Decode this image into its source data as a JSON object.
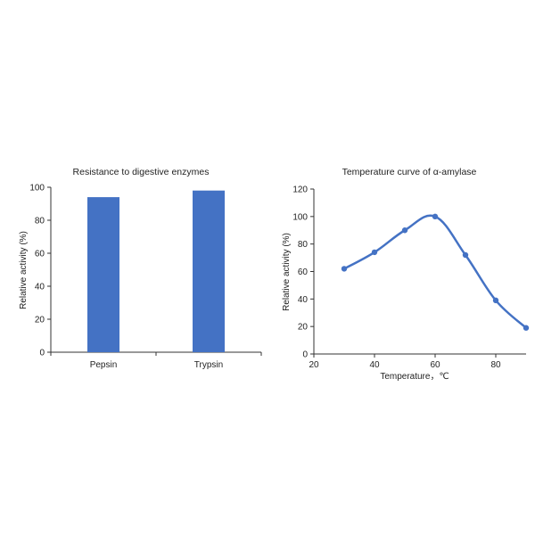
{
  "chart_data": [
    {
      "type": "bar",
      "title": "Resistance to digestive enzymes",
      "categories": [
        "Pepsin",
        "Trypsin"
      ],
      "values": [
        94,
        98
      ],
      "xlabel": "",
      "ylabel": "Relative activity (%)",
      "ylim": [
        0,
        100
      ],
      "yticks": [
        0,
        20,
        40,
        60,
        80,
        100
      ],
      "grid": false,
      "color": "#4472C4"
    },
    {
      "type": "line",
      "title": "Temperature curve of α-amylase",
      "x": [
        30,
        40,
        50,
        60,
        70,
        80,
        90
      ],
      "y": [
        62,
        74,
        90,
        100,
        72,
        39,
        19
      ],
      "xlabel": "Temperature，℃",
      "ylabel": "Relative activity (%)",
      "xlim": [
        20,
        90
      ],
      "ylim": [
        0,
        120
      ],
      "xticks": [
        20,
        40,
        60,
        80
      ],
      "yticks": [
        0,
        20,
        40,
        60,
        80,
        100,
        120
      ],
      "grid": false,
      "color": "#4472C4"
    }
  ]
}
